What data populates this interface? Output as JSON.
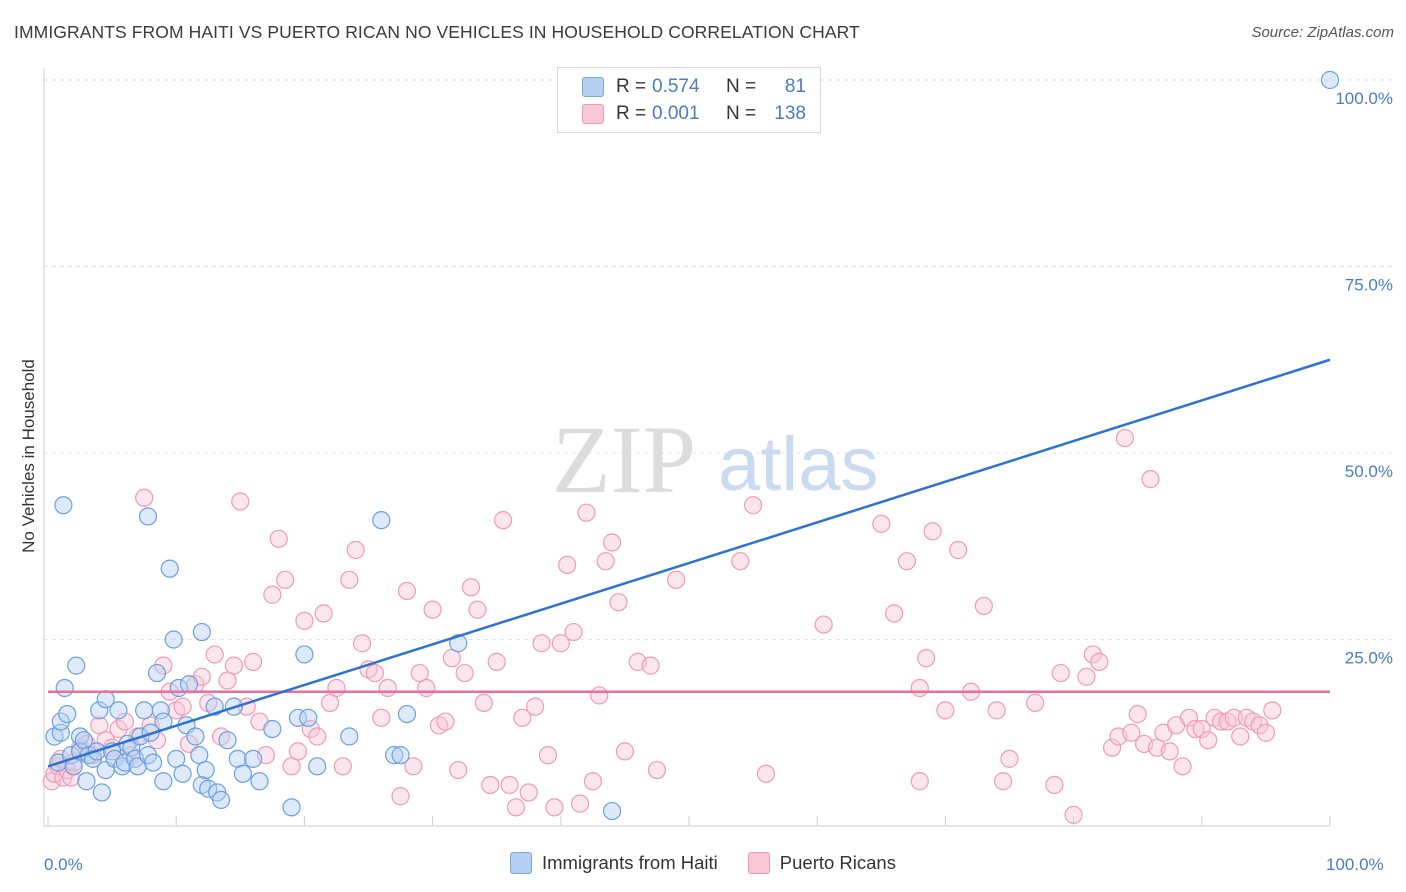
{
  "header": {
    "title": "IMMIGRANTS FROM HAITI VS PUERTO RICAN NO VEHICLES IN HOUSEHOLD CORRELATION CHART",
    "source": "Source: ZipAtlas.com"
  },
  "watermark": {
    "zip": "ZIP",
    "atlas": "atlas"
  },
  "legend": {
    "rows": [
      {
        "r_label": "R =",
        "r_value": "0.574",
        "n_label": "N =",
        "n_value": "81",
        "color": "#a8c8f0"
      },
      {
        "r_label": "R =",
        "r_value": "0.001",
        "n_label": "N =",
        "n_value": "138",
        "color": "#f7b9cc"
      }
    ]
  },
  "bottom_legend": {
    "items": [
      {
        "label": "Immigrants from Haiti",
        "color": "#a8c8f0"
      },
      {
        "label": "Puerto Ricans",
        "color": "#f7b9cc"
      }
    ]
  },
  "chart_data": {
    "type": "scatter",
    "ylabel": "No Vehicles in Household",
    "xlabel": "",
    "xlim": [
      0,
      100
    ],
    "ylim": [
      0,
      100
    ],
    "x_tick_labels": [
      "0.0%",
      "100.0%"
    ],
    "y_tick_labels": [
      "25.0%",
      "50.0%",
      "75.0%",
      "100.0%"
    ],
    "y_ticks": [
      25,
      50,
      75,
      100
    ],
    "colors": {
      "haiti": "#6a9fe0",
      "haiti_line": "#2f72d0",
      "pr": "#f09ab6",
      "pr_line": "#e8709a"
    },
    "series": [
      {
        "name": "Immigrants from Haiti",
        "trend": {
          "x": [
            0,
            100
          ],
          "y": [
            8.0,
            62.5
          ]
        },
        "points": [
          [
            0.5,
            12.0
          ],
          [
            0.8,
            8.5
          ],
          [
            1.0,
            12.5
          ],
          [
            1.0,
            14.0
          ],
          [
            1.2,
            43.0
          ],
          [
            1.3,
            18.5
          ],
          [
            1.5,
            15.0
          ],
          [
            1.8,
            9.5
          ],
          [
            2.0,
            8.0
          ],
          [
            2.2,
            21.5
          ],
          [
            2.5,
            12.0
          ],
          [
            2.5,
            10.0
          ],
          [
            2.8,
            11.5
          ],
          [
            3.0,
            6.0
          ],
          [
            3.2,
            9.5
          ],
          [
            3.5,
            9.0
          ],
          [
            3.8,
            10.0
          ],
          [
            4.0,
            15.5
          ],
          [
            4.2,
            4.5
          ],
          [
            4.5,
            17.0
          ],
          [
            4.5,
            7.5
          ],
          [
            5.0,
            10.0
          ],
          [
            5.2,
            9.0
          ],
          [
            5.5,
            15.5
          ],
          [
            5.8,
            8.0
          ],
          [
            6.0,
            8.5
          ],
          [
            6.2,
            11.0
          ],
          [
            6.5,
            10.5
          ],
          [
            6.8,
            9.0
          ],
          [
            7.0,
            8.0
          ],
          [
            7.2,
            12.0
          ],
          [
            7.5,
            15.5
          ],
          [
            7.8,
            9.5
          ],
          [
            7.8,
            41.5
          ],
          [
            8.0,
            12.5
          ],
          [
            8.2,
            8.5
          ],
          [
            8.5,
            20.5
          ],
          [
            8.8,
            15.5
          ],
          [
            9.0,
            14.0
          ],
          [
            9.0,
            6.0
          ],
          [
            9.5,
            34.5
          ],
          [
            9.8,
            25.0
          ],
          [
            10.0,
            9.0
          ],
          [
            10.2,
            18.5
          ],
          [
            10.5,
            7.0
          ],
          [
            10.8,
            13.5
          ],
          [
            11.0,
            19.0
          ],
          [
            11.5,
            12.0
          ],
          [
            11.8,
            9.5
          ],
          [
            12.0,
            26.0
          ],
          [
            12.0,
            5.5
          ],
          [
            12.3,
            7.5
          ],
          [
            12.5,
            5.0
          ],
          [
            13.0,
            16.0
          ],
          [
            13.2,
            4.5
          ],
          [
            13.5,
            3.5
          ],
          [
            14.0,
            11.5
          ],
          [
            14.5,
            16.0
          ],
          [
            14.8,
            9.0
          ],
          [
            15.2,
            7.0
          ],
          [
            16.0,
            9.0
          ],
          [
            16.5,
            6.0
          ],
          [
            17.5,
            13.0
          ],
          [
            19.0,
            2.5
          ],
          [
            19.5,
            14.5
          ],
          [
            20.0,
            23.0
          ],
          [
            20.3,
            14.5
          ],
          [
            21.0,
            8.0
          ],
          [
            23.5,
            12.0
          ],
          [
            26.0,
            41.0
          ],
          [
            27.0,
            9.5
          ],
          [
            27.5,
            9.5
          ],
          [
            28.0,
            15.0
          ],
          [
            32.0,
            24.5
          ],
          [
            44.0,
            2.0
          ],
          [
            100,
            100
          ]
        ]
      },
      {
        "name": "Puerto Ricans",
        "trend": {
          "x": [
            0,
            100
          ],
          "y": [
            18.0,
            18.0
          ]
        },
        "points": [
          [
            0.3,
            6.0
          ],
          [
            0.5,
            7.0
          ],
          [
            0.8,
            8.0
          ],
          [
            1.0,
            9.0
          ],
          [
            1.2,
            6.5
          ],
          [
            1.5,
            7.5
          ],
          [
            1.8,
            6.5
          ],
          [
            2.0,
            8.5
          ],
          [
            2.5,
            10.5
          ],
          [
            3.0,
            11.0
          ],
          [
            3.5,
            9.5
          ],
          [
            4.0,
            13.5
          ],
          [
            4.5,
            11.5
          ],
          [
            5.0,
            10.5
          ],
          [
            5.5,
            13.0
          ],
          [
            6.0,
            14.0
          ],
          [
            6.5,
            9.5
          ],
          [
            7.0,
            12.0
          ],
          [
            7.5,
            44.0
          ],
          [
            8.0,
            13.5
          ],
          [
            8.5,
            11.5
          ],
          [
            9.0,
            21.5
          ],
          [
            9.5,
            18.0
          ],
          [
            10.0,
            15.5
          ],
          [
            10.5,
            16.0
          ],
          [
            11.0,
            11.0
          ],
          [
            11.5,
            19.0
          ],
          [
            12.0,
            20.0
          ],
          [
            12.5,
            16.5
          ],
          [
            13.0,
            23.0
          ],
          [
            13.5,
            12.0
          ],
          [
            14.0,
            19.5
          ],
          [
            14.5,
            21.5
          ],
          [
            15.0,
            43.5
          ],
          [
            15.5,
            16.0
          ],
          [
            16.0,
            22.0
          ],
          [
            16.5,
            14.0
          ],
          [
            17.0,
            9.5
          ],
          [
            17.5,
            31.0
          ],
          [
            18.0,
            38.5
          ],
          [
            18.5,
            33.0
          ],
          [
            19.0,
            8.0
          ],
          [
            19.5,
            10.0
          ],
          [
            20.0,
            27.5
          ],
          [
            20.5,
            13.0
          ],
          [
            21.0,
            12.0
          ],
          [
            21.5,
            28.5
          ],
          [
            22.0,
            16.5
          ],
          [
            22.5,
            18.5
          ],
          [
            23.0,
            8.0
          ],
          [
            23.5,
            33.0
          ],
          [
            24.0,
            37.0
          ],
          [
            24.5,
            24.5
          ],
          [
            25.0,
            21.0
          ],
          [
            25.5,
            20.5
          ],
          [
            26.0,
            14.5
          ],
          [
            26.5,
            18.5
          ],
          [
            27.5,
            4.0
          ],
          [
            28.0,
            31.5
          ],
          [
            28.5,
            8.0
          ],
          [
            29.0,
            20.5
          ],
          [
            29.5,
            18.5
          ],
          [
            30.0,
            29.0
          ],
          [
            30.5,
            13.5
          ],
          [
            31.0,
            14.0
          ],
          [
            31.5,
            22.5
          ],
          [
            32.0,
            7.5
          ],
          [
            32.5,
            20.5
          ],
          [
            33.0,
            32.0
          ],
          [
            33.5,
            29.0
          ],
          [
            34.0,
            16.5
          ],
          [
            34.5,
            5.5
          ],
          [
            35.0,
            22.0
          ],
          [
            35.5,
            41.0
          ],
          [
            36.0,
            5.5
          ],
          [
            36.5,
            2.5
          ],
          [
            37.0,
            14.5
          ],
          [
            37.5,
            4.5
          ],
          [
            38.0,
            16.0
          ],
          [
            38.5,
            24.5
          ],
          [
            39.0,
            9.5
          ],
          [
            39.5,
            2.5
          ],
          [
            40.0,
            24.5
          ],
          [
            40.5,
            35.0
          ],
          [
            41.0,
            26.0
          ],
          [
            41.5,
            3.0
          ],
          [
            42.0,
            42.0
          ],
          [
            42.5,
            6.0
          ],
          [
            43.0,
            17.5
          ],
          [
            43.5,
            35.5
          ],
          [
            44.0,
            38.0
          ],
          [
            45.0,
            10.0
          ],
          [
            46.0,
            22.0
          ],
          [
            47.5,
            7.5
          ],
          [
            49.0,
            33.0
          ],
          [
            65.0,
            40.5
          ],
          [
            66.0,
            28.5
          ],
          [
            67.0,
            35.5
          ],
          [
            68.0,
            18.5
          ],
          [
            68.5,
            22.5
          ],
          [
            69.0,
            39.5
          ],
          [
            70.0,
            15.5
          ],
          [
            71.0,
            37.0
          ],
          [
            72.0,
            18.0
          ],
          [
            73.0,
            29.5
          ],
          [
            74.0,
            15.5
          ],
          [
            75.0,
            9.0
          ],
          [
            77.0,
            16.5
          ],
          [
            78.5,
            5.5
          ],
          [
            79.0,
            20.5
          ],
          [
            80.0,
            1.5
          ],
          [
            81.0,
            20.0
          ],
          [
            81.5,
            23.0
          ],
          [
            82.0,
            22.0
          ],
          [
            83.0,
            10.5
          ],
          [
            83.5,
            12.0
          ],
          [
            84.0,
            52.0
          ],
          [
            84.5,
            12.5
          ],
          [
            85.0,
            15.0
          ],
          [
            85.5,
            11.0
          ],
          [
            86.0,
            46.5
          ],
          [
            86.5,
            10.5
          ],
          [
            87.0,
            12.5
          ],
          [
            87.5,
            10.0
          ],
          [
            88.0,
            13.5
          ],
          [
            88.5,
            8.0
          ],
          [
            89.0,
            14.5
          ],
          [
            89.5,
            13.0
          ],
          [
            90.0,
            13.0
          ],
          [
            90.5,
            11.5
          ],
          [
            91.0,
            14.5
          ],
          [
            91.5,
            14.0
          ],
          [
            92.0,
            14.0
          ],
          [
            92.5,
            14.5
          ],
          [
            93.0,
            12.0
          ],
          [
            93.5,
            14.5
          ],
          [
            94.0,
            14.0
          ],
          [
            94.5,
            13.5
          ],
          [
            95.0,
            12.5
          ],
          [
            95.5,
            15.5
          ],
          [
            68.0,
            6.0
          ],
          [
            74.5,
            6.0
          ],
          [
            56.0,
            7.0
          ],
          [
            60.5,
            27.0
          ],
          [
            54.0,
            35.5
          ],
          [
            55.0,
            43.0
          ],
          [
            44.5,
            30.0
          ],
          [
            47.0,
            21.5
          ]
        ]
      }
    ]
  }
}
